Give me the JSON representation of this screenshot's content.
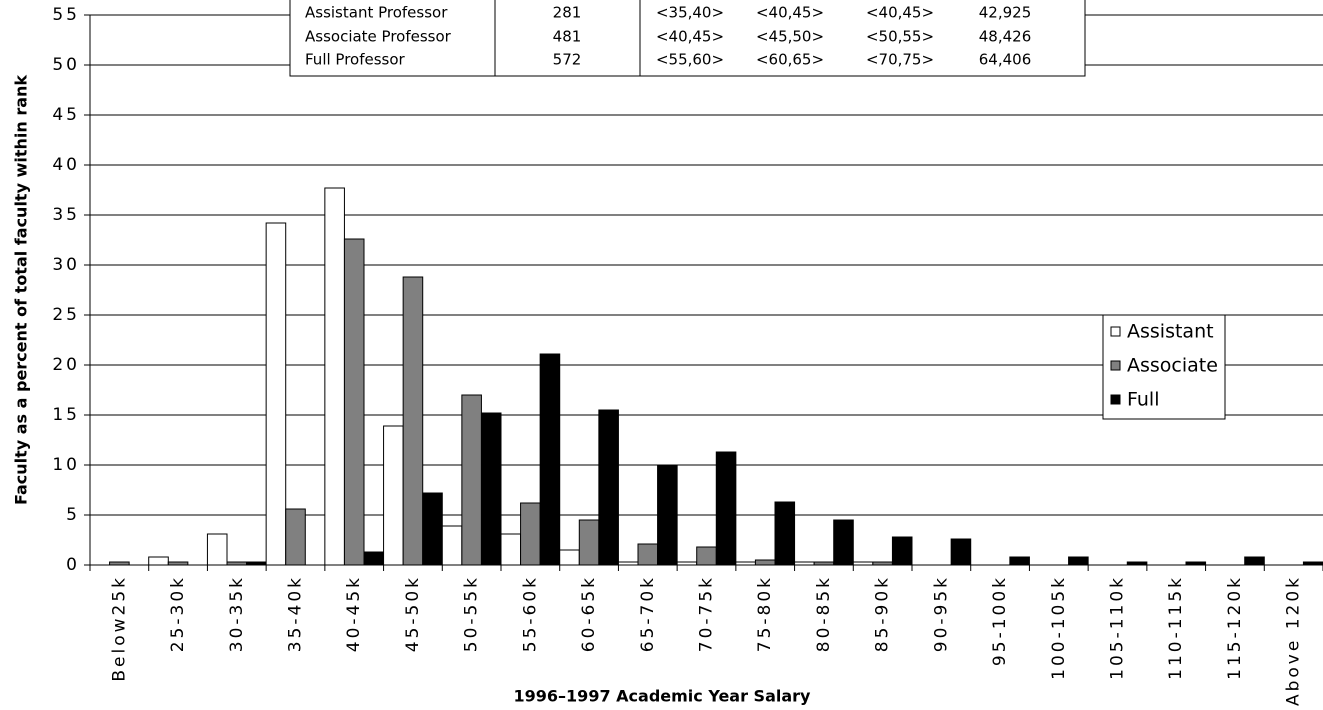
{
  "chart_data": {
    "type": "bar",
    "x_label": "1996–1997 Academic Year Salary",
    "y_label": "Faculty as a percent of total faculty within rank",
    "categories": [
      "Below25k",
      "25-30k",
      "30-35k",
      "35-40k",
      "40-45k",
      "45-50k",
      "50-55k",
      "55-60k",
      "60-65k",
      "65-70k",
      "70-75k",
      "75-80k",
      "80-85k",
      "85-90k",
      "90-95k",
      "95-100k",
      "100-105k",
      "105-110k",
      "110-115k",
      "115-120k",
      "Above 120k"
    ],
    "series": [
      {
        "name": "Assistant",
        "color": "#ffffff",
        "values": [
          0,
          0.8,
          3.1,
          34.2,
          37.7,
          13.9,
          3.9,
          3.1,
          1.5,
          0.3,
          0.3,
          0.3,
          0.3,
          0.3,
          0,
          0,
          0,
          0,
          0,
          0,
          0
        ]
      },
      {
        "name": "Associate",
        "color": "#808080",
        "values": [
          0.3,
          0.3,
          0.3,
          5.6,
          32.6,
          28.8,
          17,
          6.2,
          4.5,
          2.1,
          1.8,
          0.5,
          0.3,
          0.3,
          0,
          0,
          0,
          0,
          0,
          0,
          0
        ]
      },
      {
        "name": "Full",
        "color": "#000000",
        "values": [
          0,
          0,
          0.3,
          0,
          1.3,
          7.2,
          15.2,
          21.1,
          15.5,
          10,
          11.3,
          6.3,
          4.5,
          2.8,
          2.6,
          0.8,
          0.8,
          0.3,
          0.3,
          0.8,
          0.3
        ]
      }
    ],
    "ylim": [
      0,
      55
    ],
    "yticks": [
      0,
      5,
      10,
      15,
      20,
      25,
      30,
      35,
      40,
      45,
      50,
      55
    ],
    "grid": true,
    "legend": "right"
  },
  "table": {
    "rows": [
      [
        "Assistant Professor",
        "281",
        "<35,40>",
        "<40,45>",
        "<40,45>",
        "42,925"
      ],
      [
        "Associate Professor",
        "481",
        "<40,45>",
        "<45,50>",
        "<50,55>",
        "48,426"
      ],
      [
        "Full Professor",
        "572",
        "<55,60>",
        "<60,65>",
        "<70,75>",
        "64,406"
      ]
    ]
  }
}
